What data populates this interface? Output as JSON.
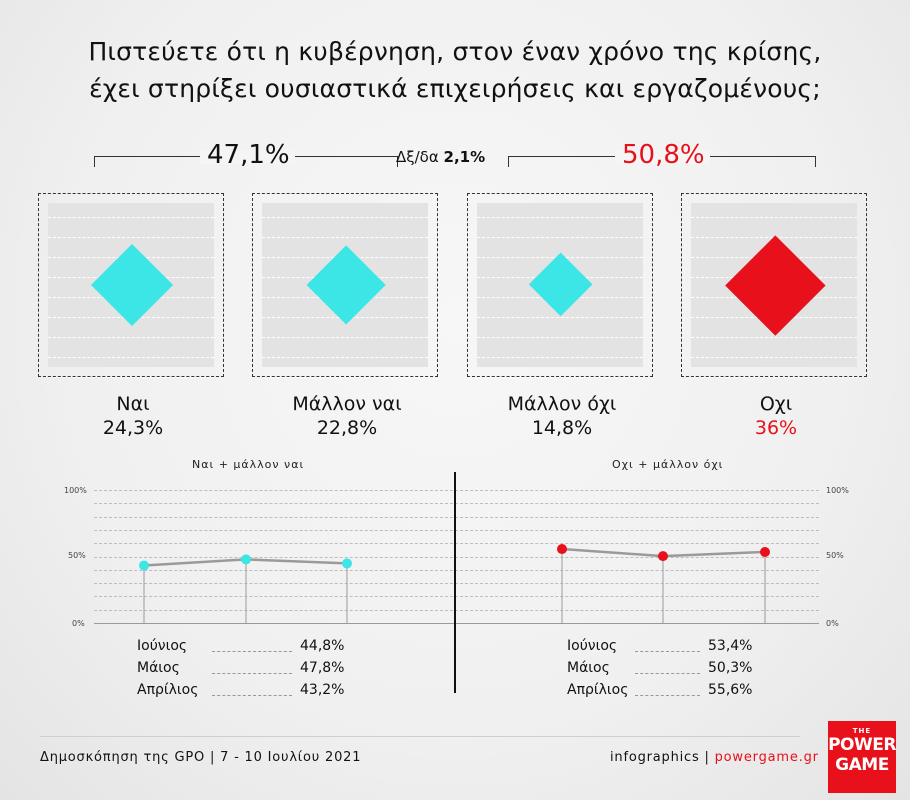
{
  "title": {
    "line1": "Πιστεύετε ότι η κυβέρνηση, στον έναν χρόνο της κρίσης,",
    "line2": "έχει στηρίξει ουσιαστικά επιχειρήσεις και εργαζομένους;"
  },
  "totals": {
    "yes_total": "47,1%",
    "no_total": "50,8%",
    "dk_label": "Δξ/δα",
    "dk_value": "2,1%"
  },
  "colors": {
    "cyan": "#3de6e6",
    "red": "#e8101a",
    "text": "#111111"
  },
  "chart_data": [
    {
      "type": "bar",
      "categories": [
        "Ναι",
        "Μάλλον ναι",
        "Μάλλον όχι",
        "Οχι"
      ],
      "values": [
        24.3,
        22.8,
        14.8,
        36
      ],
      "value_labels": [
        "24,3%",
        "22,8%",
        "14,8%",
        "36%"
      ],
      "colors": [
        "#3de6e6",
        "#3de6e6",
        "#3de6e6",
        "#e8101a"
      ]
    },
    {
      "type": "line",
      "title": "Ναι + μάλλον ναι",
      "x": [
        "Απρίλιος",
        "Μάιος",
        "Ιούνιος"
      ],
      "values": [
        43.2,
        47.8,
        44.8
      ],
      "ylim": [
        0,
        100
      ],
      "yticks": [
        "100%",
        "50%",
        "0%"
      ],
      "color": "#3de6e6"
    },
    {
      "type": "line",
      "title": "Οχι + μάλλον όχι",
      "x": [
        "Απρίλιος",
        "Μάιος",
        "Ιούνιος"
      ],
      "values": [
        55.6,
        50.3,
        53.4
      ],
      "ylim": [
        0,
        100
      ],
      "yticks": [
        "100%",
        "50%",
        "0%"
      ],
      "color": "#e8101a"
    }
  ],
  "legend_left": [
    {
      "month": "Ιούνιος",
      "value": "44,8%"
    },
    {
      "month": "Μάιος",
      "value": "47,8%"
    },
    {
      "month": "Απρίλιος",
      "value": "43,2%"
    }
  ],
  "legend_right": [
    {
      "month": "Ιούνιος",
      "value": "53,4%"
    },
    {
      "month": "Μάιος",
      "value": "50,3%"
    },
    {
      "month": "Απρίλιος",
      "value": "55,6%"
    }
  ],
  "footer": {
    "source": "Δημοσκόπηση της GPO | 7 - 10 Ιουλίου 2021",
    "infographics": "infographics | ",
    "site": "powergame.gr"
  },
  "logo": {
    "the": "THE",
    "line1": "POWER",
    "line2": "GAME"
  }
}
